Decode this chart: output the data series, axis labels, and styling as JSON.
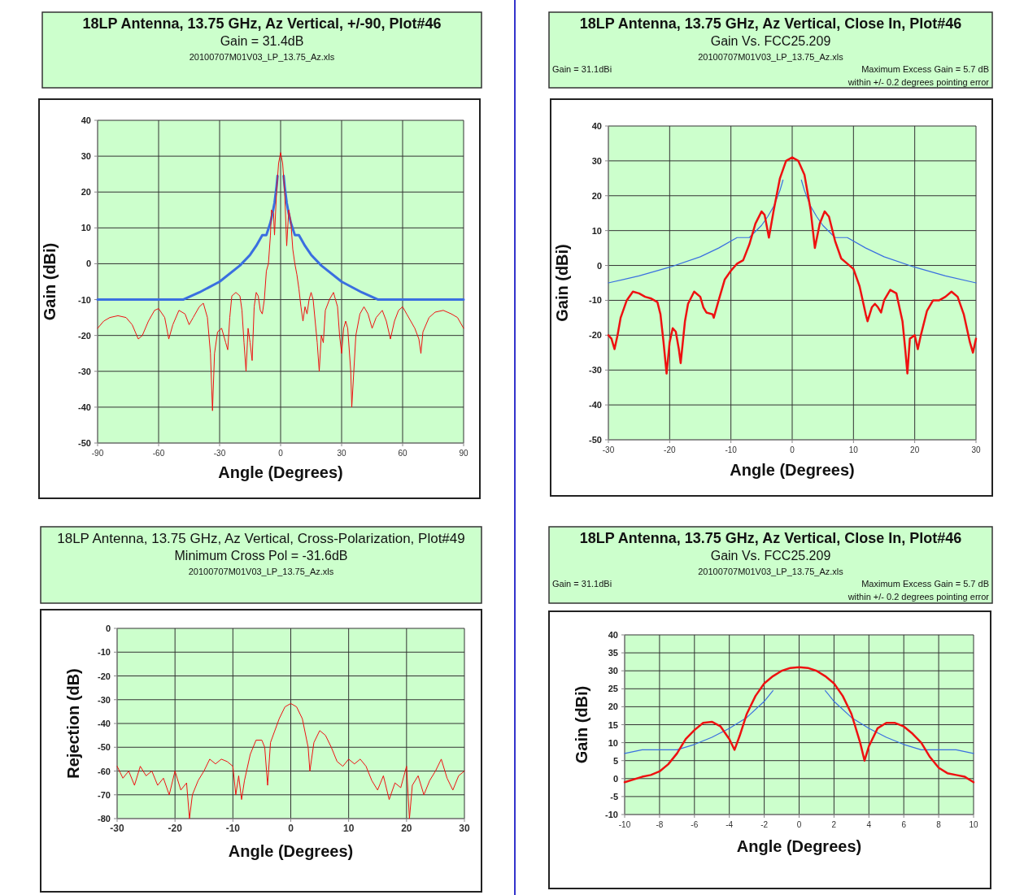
{
  "chart_data": [
    {
      "type": "line",
      "title": "18LP Antenna, 13.75 GHz, Az Vertical, +/-90, Plot#46",
      "subtitle": "Gain = 31.4dB",
      "annotations": [
        "20100707M01V03_LP_13.75_Az.xls"
      ],
      "xlabel": "Angle (Degrees)",
      "ylabel": "Gain (dBi)",
      "xlim": [
        -90,
        90
      ],
      "xticks": [
        -90,
        -60,
        -30,
        0,
        30,
        60,
        90
      ],
      "ylim": [
        -50,
        40
      ],
      "yticks": [
        -50,
        -40,
        -30,
        -20,
        -10,
        0,
        10,
        20,
        30,
        40
      ],
      "grid": true,
      "series": [
        {
          "color": "#ee1111",
          "x": [
            -90,
            -87,
            -84,
            -80,
            -76,
            -73,
            -70,
            -68,
            -65,
            -62,
            -60,
            -57,
            -55,
            -53,
            -50,
            -47,
            -45,
            -43,
            -40,
            -38,
            -36,
            -34.5,
            -33.5,
            -32.5,
            -31,
            -29,
            -27,
            -26,
            -25,
            -24,
            -22,
            -20,
            -19,
            -18,
            -17,
            -16,
            -15,
            -14,
            -13,
            -12,
            -11,
            -10,
            -9,
            -8,
            -7,
            -6,
            -5,
            -4.5,
            -3.5,
            -3,
            -2,
            -1,
            0,
            1,
            2,
            3,
            4,
            5,
            6,
            7,
            8,
            9,
            10,
            11,
            12,
            13,
            14,
            15,
            16,
            17,
            18,
            19,
            20,
            21,
            22,
            24,
            26,
            28,
            29,
            30,
            31,
            32,
            33,
            34.5,
            35,
            36,
            37,
            39,
            41,
            43,
            45,
            47,
            50,
            52,
            54,
            56,
            58,
            60,
            62,
            64,
            66,
            68,
            69,
            70,
            73,
            76,
            80,
            84,
            87,
            90
          ],
          "values": [
            -18,
            -16,
            -15,
            -14.5,
            -15,
            -17,
            -21,
            -20,
            -16,
            -13,
            -12.5,
            -15,
            -21,
            -17,
            -13,
            -14,
            -17,
            -15,
            -12,
            -11,
            -15,
            -25,
            -41,
            -25,
            -19,
            -18,
            -22,
            -24,
            -15,
            -9,
            -8,
            -9,
            -13,
            -22,
            -30,
            -18,
            -22,
            -27,
            -12,
            -8,
            -9,
            -13,
            -14,
            -10,
            -2,
            0,
            8,
            15,
            14,
            8,
            20,
            28,
            31,
            28,
            20,
            5,
            15,
            12,
            4,
            0,
            -3,
            -7,
            -12,
            -16,
            -12,
            -14,
            -10,
            -8,
            -10,
            -16,
            -22,
            -30,
            -20,
            -22,
            -13,
            -10,
            -8,
            -12,
            -20,
            -25,
            -18,
            -16,
            -18,
            -30,
            -40,
            -30,
            -20,
            -14,
            -12,
            -14,
            -18,
            -15,
            -13,
            -16,
            -21,
            -16,
            -13,
            -12,
            -14,
            -16,
            -18,
            -21,
            -25,
            -19,
            -15,
            -13.5,
            -13,
            -14,
            -15,
            -18
          ]
        },
        {
          "color": "#3a6fe0",
          "x": [
            -90,
            -48,
            -40,
            -30,
            -20,
            -15,
            -12,
            -9,
            -7,
            -5,
            -4,
            -3,
            -2,
            -1.5,
            0,
            1.5,
            2,
            3,
            4,
            5,
            7,
            9,
            12,
            15,
            20,
            30,
            40,
            48,
            90
          ],
          "values": [
            -10,
            -10,
            -8,
            -5,
            -0.5,
            2.5,
            5,
            8,
            8,
            11.5,
            14,
            17,
            21.5,
            24.5,
            null,
            24.5,
            21.5,
            17,
            14,
            11.5,
            8,
            8,
            5,
            2.5,
            -0.5,
            -5,
            -8,
            -10,
            -10
          ]
        }
      ]
    },
    {
      "type": "line",
      "title": "18LP Antenna, 13.75 GHz, Az Vertical, Close In, Plot#46",
      "subtitle": "Gain Vs. FCC25.209",
      "annotations": [
        "20100707M01V03_LP_13.75_Az.xls",
        "Gain = 31.1dBi",
        "Maximum Excess Gain = 5.7 dB",
        "within +/- 0.2 degrees pointing error"
      ],
      "xlabel": "Angle (Degrees)",
      "ylabel": "Gain (dBi)",
      "xlim": [
        -30,
        30
      ],
      "xticks": [
        -30,
        -20,
        -10,
        0,
        10,
        20,
        30
      ],
      "ylim": [
        -50,
        40
      ],
      "yticks": [
        -50,
        -40,
        -30,
        -20,
        -10,
        0,
        10,
        20,
        30,
        40
      ],
      "grid": true,
      "series": [
        {
          "color": "#ee1111",
          "x": [
            -30,
            -29.5,
            -29,
            -28.5,
            -28,
            -27,
            -26,
            -25,
            -24,
            -23,
            -22,
            -21.5,
            -21,
            -20.5,
            -20,
            -19.5,
            -19,
            -18.5,
            -18.2,
            -17.5,
            -17,
            -16,
            -15,
            -14.5,
            -14,
            -13,
            -12.8,
            -12,
            -11,
            -10,
            -9,
            -8,
            -7,
            -6,
            -5,
            -4.5,
            -3.8,
            -3,
            -2,
            -1,
            0,
            1,
            2,
            3,
            3.7,
            4.5,
            5.3,
            6,
            7,
            8,
            9,
            10,
            11,
            12,
            12.3,
            13,
            13.5,
            14,
            14.5,
            15,
            16,
            17,
            18,
            18.5,
            18.8,
            19.2,
            20,
            20.5,
            21,
            22,
            23,
            24,
            25,
            26,
            27,
            28,
            29,
            29.5,
            30
          ],
          "values": [
            -20,
            -21,
            -24,
            -20,
            -15,
            -10,
            -7.5,
            -8,
            -9,
            -9.5,
            -10.5,
            -14,
            -22,
            -31,
            -22,
            -18,
            -19,
            -24,
            -28,
            -16,
            -11,
            -7.5,
            -9,
            -12,
            -13.5,
            -14,
            -15,
            -10,
            -4,
            -1.5,
            0.5,
            1.5,
            6,
            12,
            15.5,
            14.5,
            8,
            16,
            25,
            30,
            31,
            30,
            26,
            16,
            5,
            12,
            15.5,
            14,
            7,
            2,
            0.5,
            -1,
            -6,
            -14,
            -16,
            -12,
            -11,
            -12,
            -13.5,
            -10,
            -7,
            -8,
            -16,
            -25,
            -31,
            -21,
            -20,
            -24,
            -20,
            -13,
            -10,
            -10,
            -9,
            -7.5,
            -9,
            -14,
            -22,
            -25,
            -21
          ]
        },
        {
          "color": "#3a6fe0",
          "x": [
            -30,
            -25,
            -20,
            -15,
            -12,
            -9,
            -7,
            -5,
            -4,
            -3,
            -2,
            -1.5,
            0,
            1.5,
            2,
            3,
            4,
            5,
            7,
            9,
            12,
            15,
            20,
            25,
            30
          ],
          "values": [
            -5,
            -3,
            -0.5,
            2.5,
            5,
            8,
            8,
            11.5,
            14,
            17,
            21.5,
            24.5,
            null,
            24.5,
            21.5,
            17,
            14,
            11.5,
            8,
            8,
            5,
            2.5,
            -0.5,
            -3,
            -5
          ]
        }
      ]
    },
    {
      "type": "line",
      "title": "18LP Antenna, 13.75 GHz, Az Vertical, Cross-Polarization, Plot#49",
      "subtitle": "Minimum Cross Pol = -31.6dB",
      "annotations": [
        "20100707M01V03_LP_13.75_Az.xls"
      ],
      "xlabel": "Angle (Degrees)",
      "ylabel": "Rejection (dB)",
      "xlim": [
        -30,
        30
      ],
      "xticks": [
        -30,
        -20,
        -10,
        0,
        10,
        20,
        30
      ],
      "ylim": [
        -80,
        0
      ],
      "yticks": [
        -80,
        -70,
        -60,
        -50,
        -40,
        -30,
        -20,
        -10,
        0
      ],
      "grid": true,
      "series": [
        {
          "color": "#ee1111",
          "x": [
            -30,
            -29,
            -28,
            -27,
            -26,
            -25,
            -24,
            -23,
            -22,
            -21,
            -20,
            -19,
            -18,
            -17.5,
            -17,
            -16,
            -15,
            -14,
            -13,
            -12,
            -11,
            -10,
            -9.5,
            -9,
            -8.5,
            -8,
            -7,
            -6,
            -5,
            -4.5,
            -4,
            -3.5,
            -2,
            -1,
            0,
            1,
            2,
            3,
            3.3,
            4,
            5,
            6,
            7,
            8,
            9,
            10,
            11,
            12,
            13,
            14,
            15,
            16,
            17,
            18,
            19,
            20,
            20.5,
            21,
            22,
            23,
            24,
            25,
            26,
            27,
            28,
            29,
            30
          ],
          "values": [
            -58,
            -63,
            -60,
            -66,
            -58,
            -62,
            -60,
            -66,
            -63,
            -70,
            -60,
            -68,
            -65,
            -80,
            -70,
            -64,
            -60,
            -55,
            -57,
            -55,
            -56,
            -58,
            -70,
            -62,
            -72,
            -64,
            -53,
            -47,
            -47,
            -50,
            -66,
            -48,
            -38,
            -33,
            -31.6,
            -33,
            -38,
            -50,
            -60,
            -48,
            -43,
            -45,
            -50,
            -56,
            -58,
            -55,
            -57,
            -55,
            -58,
            -64,
            -68,
            -62,
            -72,
            -65,
            -67,
            -58,
            -80,
            -66,
            -62,
            -70,
            -64,
            -60,
            -55,
            -63,
            -68,
            -62,
            -60
          ]
        }
      ]
    },
    {
      "type": "line",
      "title": "18LP Antenna, 13.75 GHz, Az Vertical, Close In, Plot#46",
      "subtitle": "Gain Vs. FCC25.209",
      "annotations": [
        "20100707M01V03_LP_13.75_Az.xls",
        "Gain = 31.1dBi",
        "Maximum Excess Gain = 5.7 dB",
        "within +/- 0.2 degrees pointing error"
      ],
      "xlabel": "Angle (Degrees)",
      "ylabel": "Gain (dBi)",
      "xlim": [
        -10,
        10
      ],
      "xticks": [
        -10,
        -8,
        -6,
        -4,
        -2,
        0,
        2,
        4,
        6,
        8,
        10
      ],
      "ylim": [
        -10,
        40
      ],
      "yticks": [
        -10,
        -5,
        0,
        5,
        10,
        15,
        20,
        25,
        30,
        35,
        40
      ],
      "grid": true,
      "series": [
        {
          "color": "#ee1111",
          "x": [
            -10,
            -9,
            -8.5,
            -8,
            -7.5,
            -7,
            -6.5,
            -6,
            -5.5,
            -5,
            -4.5,
            -4,
            -3.7,
            -3.4,
            -3,
            -2.5,
            -2,
            -1.5,
            -1,
            -0.5,
            0,
            0.5,
            1,
            1.5,
            2,
            2.5,
            3,
            3.5,
            3.75,
            4,
            4.5,
            5,
            5.5,
            6,
            6.5,
            7,
            7.5,
            8,
            8.5,
            9,
            9.5,
            10
          ],
          "values": [
            -1,
            0.5,
            1,
            2,
            4,
            7,
            11,
            13.5,
            15.5,
            15.8,
            14.5,
            11,
            8,
            12,
            18,
            23,
            26.5,
            28.5,
            30,
            30.8,
            31,
            30.8,
            30,
            28.5,
            26.5,
            23,
            18,
            10,
            5,
            9,
            14,
            15.5,
            15.5,
            14.5,
            12.5,
            10,
            6,
            3,
            1.5,
            1,
            0.5,
            -1
          ]
        },
        {
          "color": "#3a6fe0",
          "x": [
            -10,
            -9,
            -7,
            -6,
            -5,
            -4,
            -3,
            -2,
            -1.5,
            0,
            1.5,
            2,
            3,
            4,
            5,
            6,
            7,
            9,
            10
          ],
          "values": [
            7,
            8,
            8,
            9.5,
            11.5,
            14,
            17,
            21.5,
            24.5,
            null,
            24.5,
            21.5,
            17,
            14,
            11.5,
            9.5,
            8,
            8,
            7
          ]
        }
      ]
    }
  ]
}
